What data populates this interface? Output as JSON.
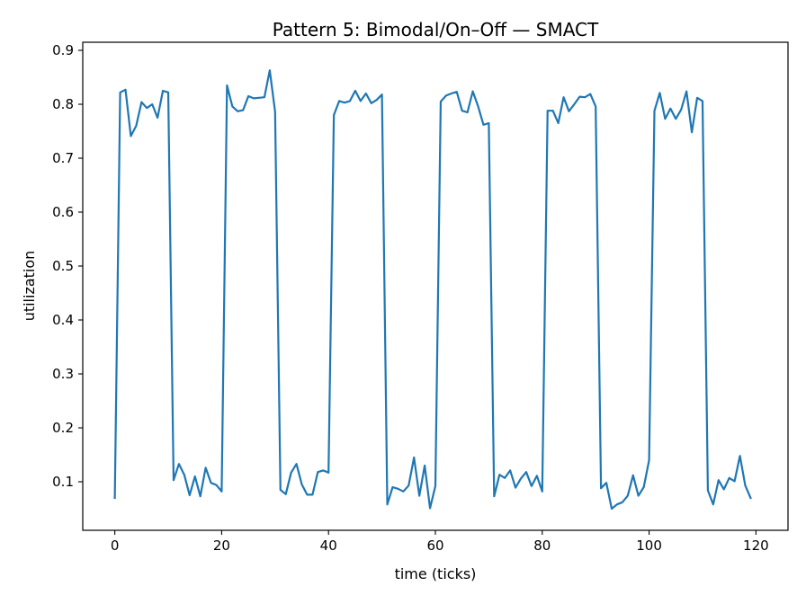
{
  "chart_data": {
    "type": "line",
    "title": "Pattern 5: Bimodal/On–Off — SMACT",
    "xlabel": "time (ticks)",
    "ylabel": "utilization",
    "xlim": [
      -6,
      126
    ],
    "ylim": [
      0.01,
      0.915
    ],
    "xticks": [
      0,
      20,
      40,
      60,
      80,
      100,
      120
    ],
    "yticks": [
      0.1,
      0.2,
      0.3,
      0.4,
      0.5,
      0.6,
      0.7,
      0.8,
      0.9
    ],
    "grid": false,
    "line_color": "#1f77b4",
    "series": [
      {
        "x": [
          0,
          1,
          2,
          3,
          4,
          5,
          6,
          7,
          8,
          9,
          10,
          11,
          12,
          13,
          14,
          15,
          16,
          17,
          18,
          19,
          20,
          21,
          22,
          23,
          24,
          25,
          26,
          27,
          28,
          29,
          30,
          31,
          32,
          33,
          34,
          35,
          36,
          37,
          38,
          39,
          40,
          41,
          42,
          43,
          44,
          45,
          46,
          47,
          48,
          49,
          50,
          51,
          52,
          53,
          54,
          55,
          56,
          57,
          58,
          59,
          60,
          61,
          62,
          63,
          64,
          65,
          66,
          67,
          68,
          69,
          70,
          71,
          72,
          73,
          74,
          75,
          76,
          77,
          78,
          79,
          80,
          81,
          82,
          83,
          84,
          85,
          86,
          87,
          88,
          89,
          90,
          91,
          92,
          93,
          94,
          95,
          96,
          97,
          98,
          99,
          100,
          101,
          102,
          103,
          104,
          105,
          106,
          107,
          108,
          109,
          110,
          111,
          112,
          113,
          114,
          115,
          116,
          117,
          118,
          119
        ],
        "values": [
          0.07,
          0.822,
          0.827,
          0.741,
          0.76,
          0.804,
          0.793,
          0.8,
          0.775,
          0.825,
          0.822,
          0.103,
          0.133,
          0.113,
          0.075,
          0.11,
          0.073,
          0.126,
          0.098,
          0.094,
          0.082,
          0.835,
          0.796,
          0.787,
          0.789,
          0.815,
          0.811,
          0.812,
          0.813,
          0.863,
          0.786,
          0.085,
          0.077,
          0.117,
          0.133,
          0.095,
          0.076,
          0.076,
          0.118,
          0.121,
          0.117,
          0.78,
          0.806,
          0.803,
          0.806,
          0.825,
          0.806,
          0.82,
          0.802,
          0.808,
          0.818,
          0.058,
          0.09,
          0.087,
          0.082,
          0.093,
          0.145,
          0.074,
          0.13,
          0.051,
          0.092,
          0.805,
          0.816,
          0.82,
          0.823,
          0.788,
          0.785,
          0.824,
          0.796,
          0.762,
          0.765,
          0.073,
          0.113,
          0.107,
          0.121,
          0.089,
          0.106,
          0.118,
          0.092,
          0.111,
          0.082,
          0.788,
          0.788,
          0.765,
          0.813,
          0.787,
          0.8,
          0.814,
          0.813,
          0.819,
          0.796,
          0.088,
          0.098,
          0.05,
          0.058,
          0.062,
          0.074,
          0.112,
          0.074,
          0.09,
          0.14,
          0.788,
          0.821,
          0.773,
          0.792,
          0.773,
          0.79,
          0.824,
          0.748,
          0.812,
          0.806,
          0.084,
          0.058,
          0.103,
          0.086,
          0.107,
          0.101,
          0.148,
          0.093,
          0.07
        ]
      }
    ]
  }
}
